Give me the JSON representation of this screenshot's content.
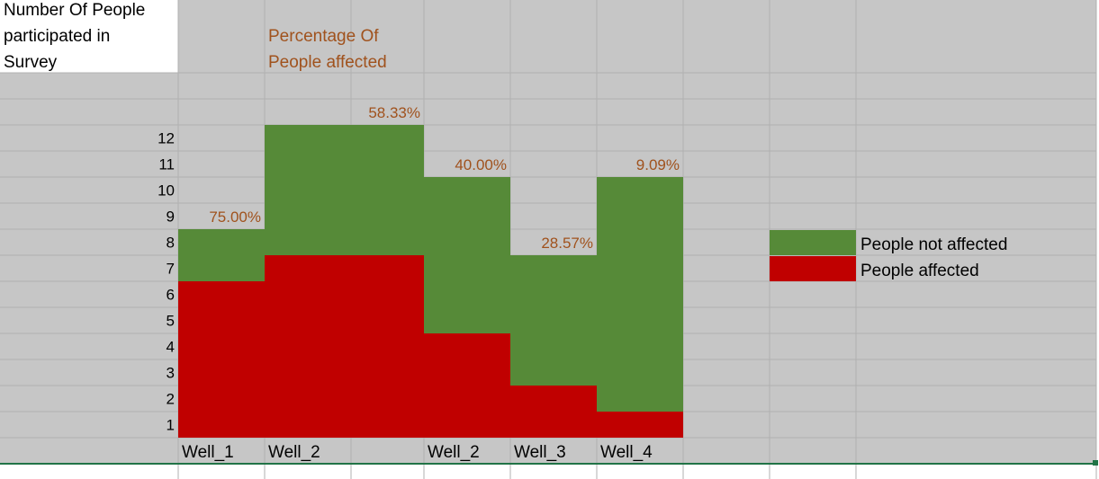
{
  "colors": {
    "background": "#c6c6c6",
    "gridline": "#b0b0b0",
    "not_affected": "#568a38",
    "affected": "#c00000",
    "label_orange": "#a0521d",
    "label_black": "#000000",
    "white": "#ffffff",
    "selection_border": "#217346"
  },
  "chart_data": {
    "type": "bar",
    "stacked": true,
    "title_lines": [
      "Percentage Of",
      "People affected"
    ],
    "ylabel_lines": [
      "Number Of People",
      "participated in",
      "Survey"
    ],
    "yticks": [
      "1",
      "2",
      "3",
      "4",
      "5",
      "6",
      "7",
      "8",
      "9",
      "10",
      "11",
      "12"
    ],
    "ylim": [
      0,
      12
    ],
    "categories": [
      "Well_1",
      "Well_2",
      "Well_2",
      "Well_3",
      "Well_4"
    ],
    "series": [
      {
        "name": "People affected",
        "values": [
          6,
          7,
          4,
          2,
          1
        ]
      },
      {
        "name": "People not affected",
        "values": [
          2,
          5,
          6,
          5,
          9
        ]
      }
    ],
    "percent_labels": [
      "75.00%",
      "58.33%",
      "40.00%",
      "28.57%",
      "9.09%"
    ],
    "legend": [
      {
        "label": "People not affected",
        "series": "not_affected"
      },
      {
        "label": "People affected",
        "series": "affected"
      }
    ],
    "legend_position": "right"
  }
}
